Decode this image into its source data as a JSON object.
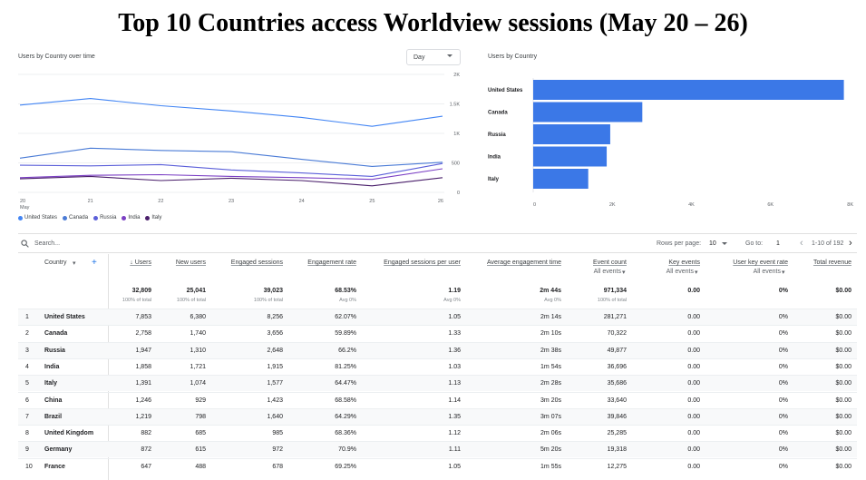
{
  "page": {
    "title": "Top 10 Countries access Worldview sessions (May 20 – 26)"
  },
  "line_card": {
    "title": "Users by Country over time",
    "granularity": "Day",
    "y_ticks": [
      "2K",
      "1.5K",
      "1K",
      "500",
      "0"
    ],
    "x_ticks": [
      "20",
      "21",
      "22",
      "23",
      "24",
      "25",
      "26"
    ],
    "x_sub": "May",
    "legend": [
      {
        "name": "United States",
        "color": "#4285f4"
      },
      {
        "name": "Canada",
        "color": "#4a7bd6"
      },
      {
        "name": "Russia",
        "color": "#5b5fd9"
      },
      {
        "name": "India",
        "color": "#7b3fc4"
      },
      {
        "name": "Italy",
        "color": "#4a1f6b"
      }
    ]
  },
  "bar_card": {
    "title": "Users by Country",
    "color": "#3b78e7",
    "x_ticks": [
      "0",
      "2K",
      "4K",
      "6K",
      "8K"
    ]
  },
  "chart_data": [
    {
      "type": "line",
      "title": "Users by Country over time",
      "x": [
        "May 20",
        "May 21",
        "May 22",
        "May 23",
        "May 24",
        "May 25",
        "May 26"
      ],
      "ylim": [
        0,
        2000
      ],
      "series": [
        {
          "name": "United States",
          "values": [
            1480,
            1590,
            1470,
            1380,
            1270,
            1120,
            1290
          ]
        },
        {
          "name": "Canada",
          "values": [
            580,
            750,
            710,
            690,
            560,
            440,
            510
          ]
        },
        {
          "name": "Russia",
          "values": [
            460,
            450,
            470,
            380,
            330,
            270,
            490
          ]
        },
        {
          "name": "India",
          "values": [
            250,
            290,
            300,
            270,
            250,
            220,
            400
          ]
        },
        {
          "name": "Italy",
          "values": [
            230,
            270,
            200,
            240,
            200,
            110,
            250
          ]
        }
      ]
    },
    {
      "type": "bar",
      "title": "Users by Country",
      "categories": [
        "United States",
        "Canada",
        "Russia",
        "India",
        "Italy"
      ],
      "values": [
        7853,
        2758,
        1947,
        1858,
        1391
      ],
      "xlim": [
        0,
        8000
      ]
    }
  ],
  "table": {
    "search_placeholder": "Search...",
    "rows_per_page_label": "Rows per page:",
    "rows_per_page_value": "10",
    "goto_label": "Go to:",
    "goto_value": "1",
    "range_label": "1-10 of 192",
    "headers": {
      "country": "Country",
      "users": "↓ Users",
      "new_users": "New users",
      "engaged_sessions": "Engaged sessions",
      "engagement_rate": "Engagement rate",
      "engaged_per_user": "Engaged sessions per user",
      "avg_engagement_time": "Average engagement time",
      "event_count": "Event count",
      "key_events": "Key events",
      "user_key_event_rate": "User key event rate",
      "total_revenue": "Total revenue"
    },
    "all_events": "All events",
    "totals": {
      "users": "32,809",
      "users_sub": "100% of total",
      "new_users": "25,041",
      "new_users_sub": "100% of total",
      "engaged_sessions": "39,023",
      "engaged_sessions_sub": "100% of total",
      "engagement_rate": "68.53%",
      "engagement_rate_sub": "Avg 0%",
      "engaged_per_user": "1.19",
      "engaged_per_user_sub": "Avg 0%",
      "avg_engagement_time": "2m 44s",
      "avg_engagement_time_sub": "Avg 0%",
      "event_count": "971,334",
      "event_count_sub": "100% of total",
      "key_events": "0.00",
      "user_key_event_rate": "0%",
      "total_revenue": "$0.00"
    },
    "rows": [
      {
        "idx": "1",
        "country": "United States",
        "users": "7,853",
        "new_users": "6,380",
        "engaged": "8,256",
        "rate": "62.07%",
        "per_user": "1.05",
        "avg_time": "2m 14s",
        "events": "281,271",
        "key": "0.00",
        "ukr": "0%",
        "rev": "$0.00"
      },
      {
        "idx": "2",
        "country": "Canada",
        "users": "2,758",
        "new_users": "1,740",
        "engaged": "3,656",
        "rate": "59.89%",
        "per_user": "1.33",
        "avg_time": "2m 10s",
        "events": "70,322",
        "key": "0.00",
        "ukr": "0%",
        "rev": "$0.00"
      },
      {
        "idx": "3",
        "country": "Russia",
        "users": "1,947",
        "new_users": "1,310",
        "engaged": "2,648",
        "rate": "66.2%",
        "per_user": "1.36",
        "avg_time": "2m 38s",
        "events": "49,877",
        "key": "0.00",
        "ukr": "0%",
        "rev": "$0.00"
      },
      {
        "idx": "4",
        "country": "India",
        "users": "1,858",
        "new_users": "1,721",
        "engaged": "1,915",
        "rate": "81.25%",
        "per_user": "1.03",
        "avg_time": "1m 54s",
        "events": "36,696",
        "key": "0.00",
        "ukr": "0%",
        "rev": "$0.00"
      },
      {
        "idx": "5",
        "country": "Italy",
        "users": "1,391",
        "new_users": "1,074",
        "engaged": "1,577",
        "rate": "64.47%",
        "per_user": "1.13",
        "avg_time": "2m 28s",
        "events": "35,686",
        "key": "0.00",
        "ukr": "0%",
        "rev": "$0.00"
      },
      {
        "idx": "6",
        "country": "China",
        "users": "1,246",
        "new_users": "929",
        "engaged": "1,423",
        "rate": "68.58%",
        "per_user": "1.14",
        "avg_time": "3m 20s",
        "events": "33,640",
        "key": "0.00",
        "ukr": "0%",
        "rev": "$0.00"
      },
      {
        "idx": "7",
        "country": "Brazil",
        "users": "1,219",
        "new_users": "798",
        "engaged": "1,640",
        "rate": "64.29%",
        "per_user": "1.35",
        "avg_time": "3m 07s",
        "events": "39,846",
        "key": "0.00",
        "ukr": "0%",
        "rev": "$0.00"
      },
      {
        "idx": "8",
        "country": "United Kingdom",
        "users": "882",
        "new_users": "685",
        "engaged": "985",
        "rate": "68.36%",
        "per_user": "1.12",
        "avg_time": "2m 06s",
        "events": "25,285",
        "key": "0.00",
        "ukr": "0%",
        "rev": "$0.00"
      },
      {
        "idx": "9",
        "country": "Germany",
        "users": "872",
        "new_users": "615",
        "engaged": "972",
        "rate": "70.9%",
        "per_user": "1.11",
        "avg_time": "5m 20s",
        "events": "19,318",
        "key": "0.00",
        "ukr": "0%",
        "rev": "$0.00"
      },
      {
        "idx": "10",
        "country": "France",
        "users": "647",
        "new_users": "488",
        "engaged": "678",
        "rate": "69.25%",
        "per_user": "1.05",
        "avg_time": "1m 55s",
        "events": "12,275",
        "key": "0.00",
        "ukr": "0%",
        "rev": "$0.00"
      }
    ]
  }
}
